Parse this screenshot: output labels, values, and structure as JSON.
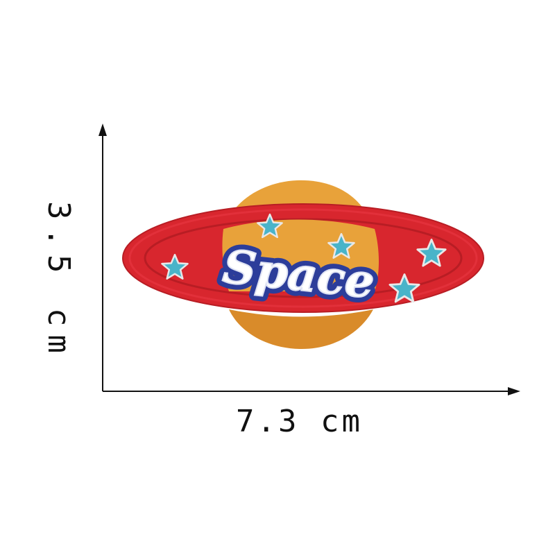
{
  "patch": {
    "text": "Space",
    "colors": {
      "ring": "#d8262e",
      "ring_inner": "#e2303a",
      "ring_stitch": "#b81d24",
      "planet": "#e8a23a",
      "planet_shade": "#d98b2a",
      "text_fill": "#ffffff",
      "text_outline": "#2c3d9a",
      "star": "#49b4c9",
      "star_outline": "#e8e8e8"
    },
    "star_count": 6
  },
  "dimensions": {
    "width_label": "7.3 cm",
    "height_label": "3.5 cm",
    "arrow_color": "#111111"
  }
}
